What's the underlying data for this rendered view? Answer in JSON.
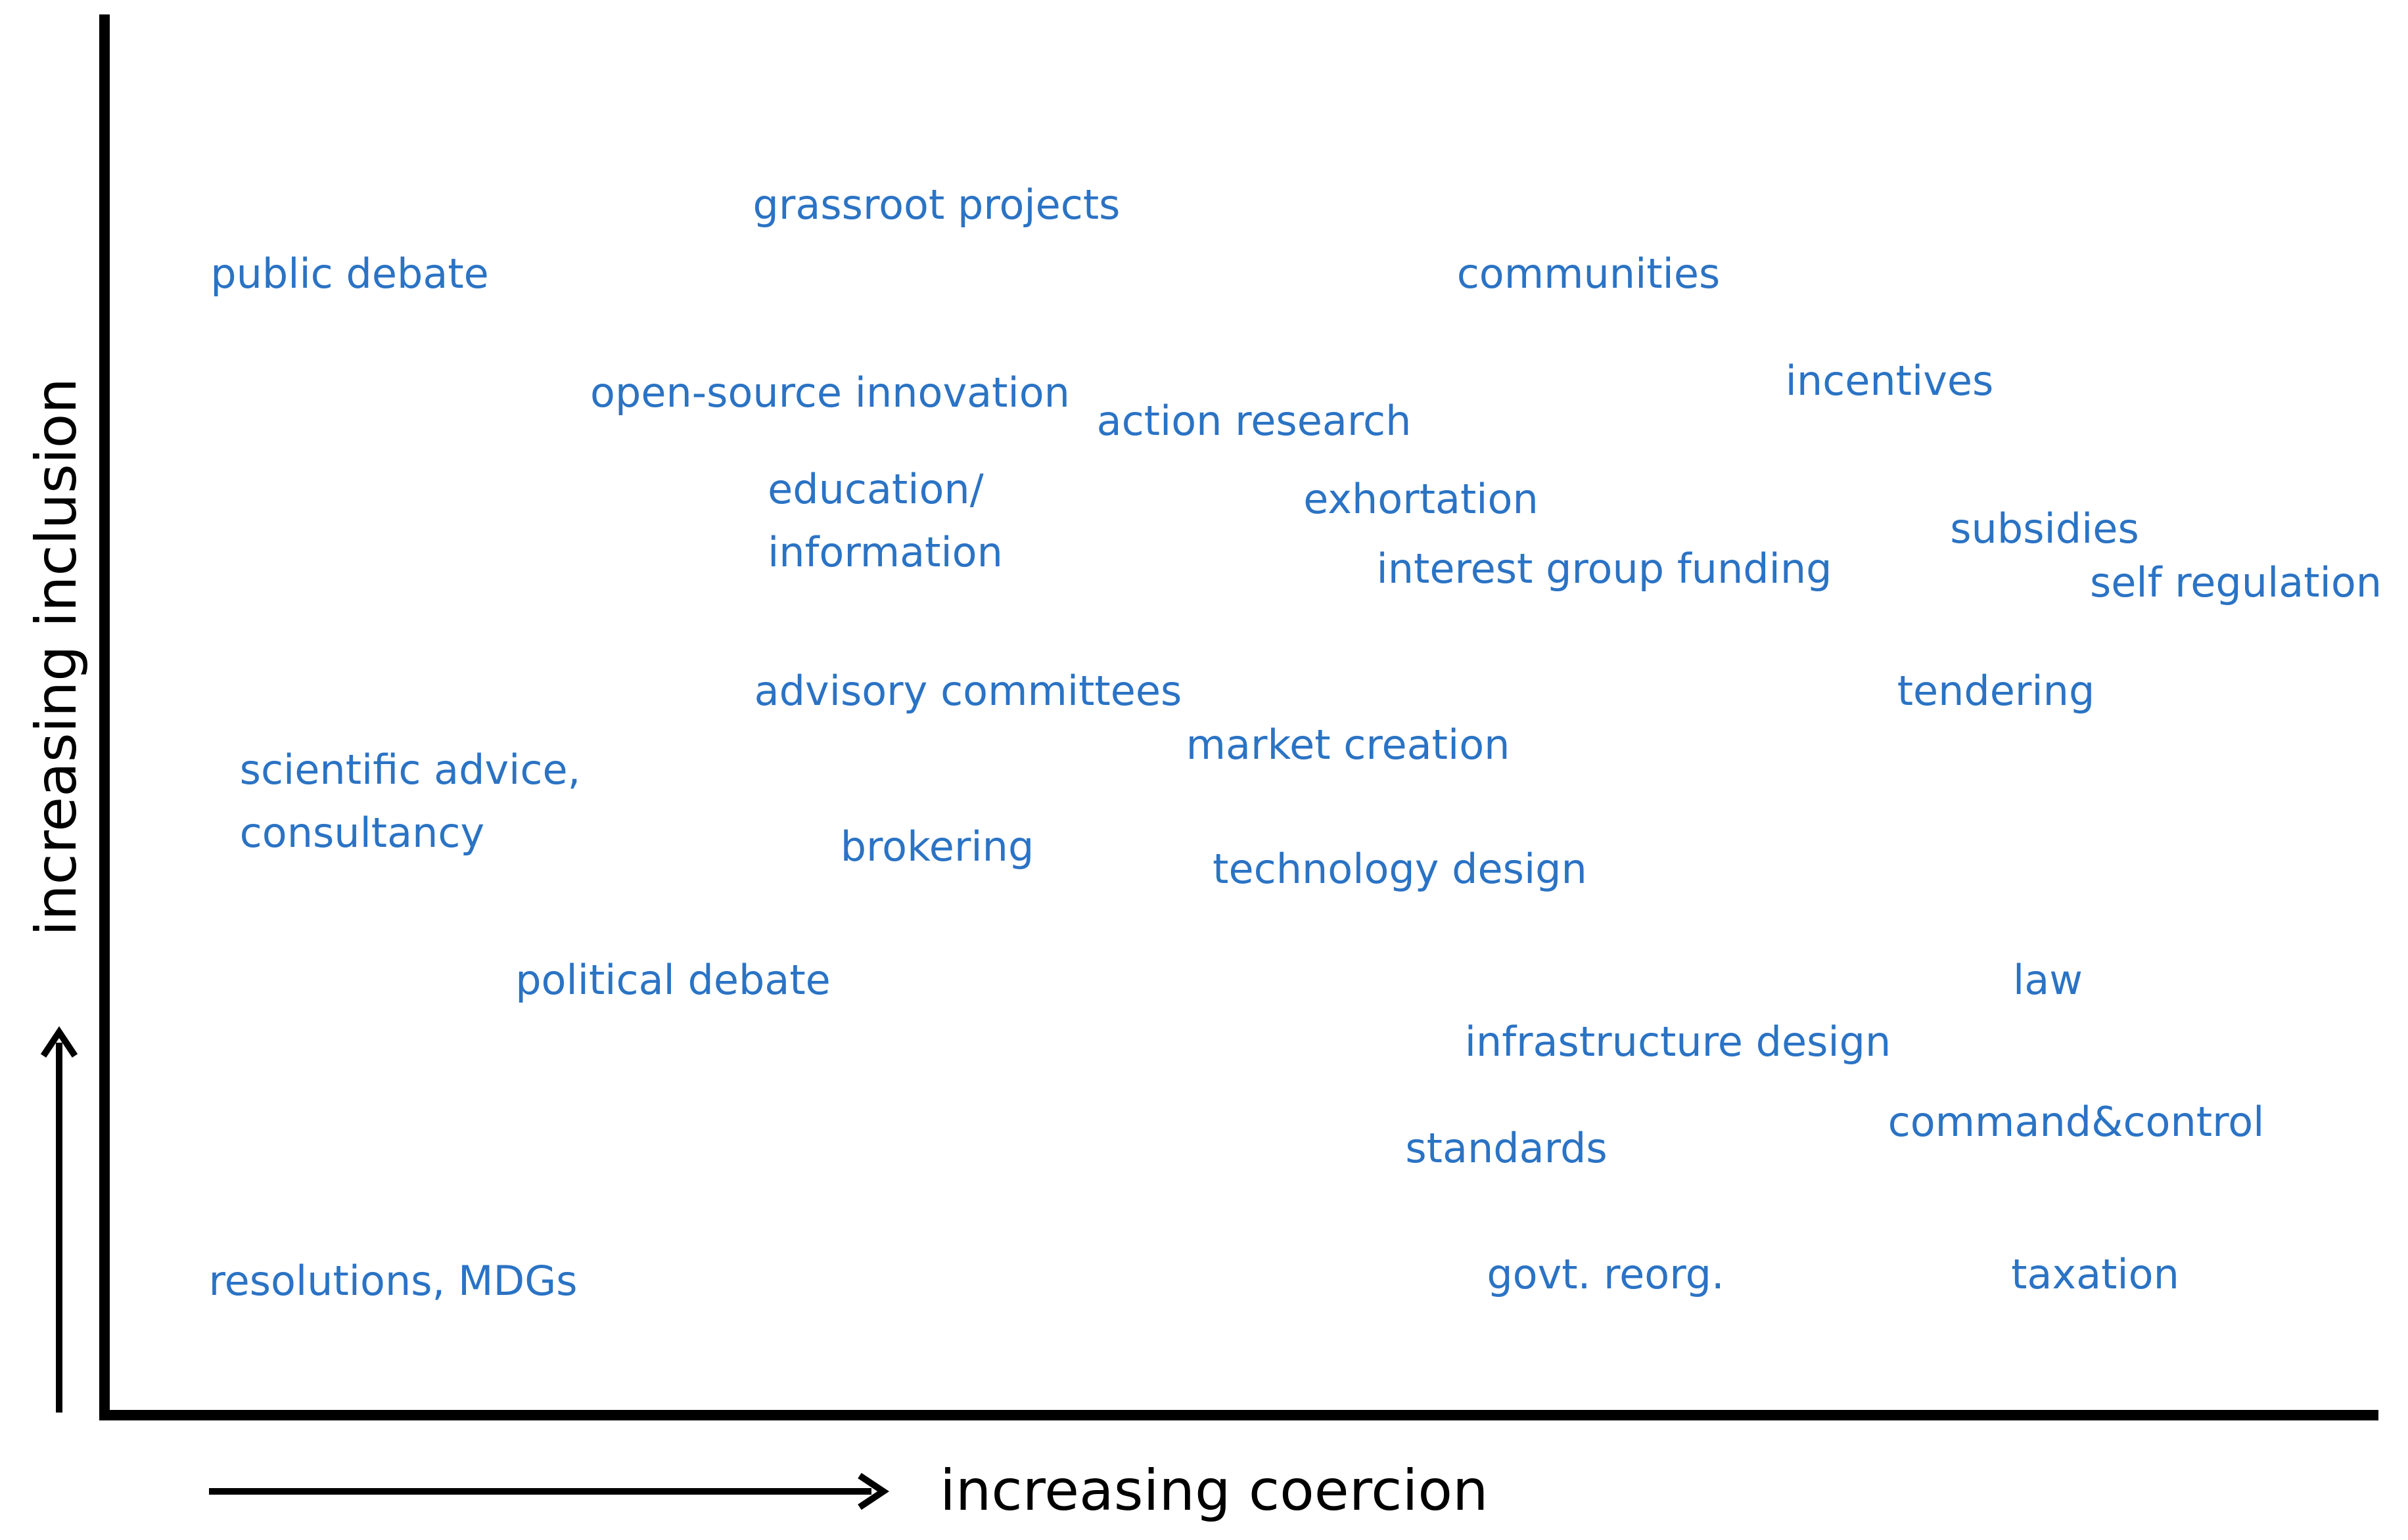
{
  "axes": {
    "x_label": "increasing coercion",
    "y_label": "increasing inclusion"
  },
  "colors": {
    "term_text": "#2b73c4",
    "axis": "#000000"
  },
  "terms": [
    {
      "id": "grassroot-projects",
      "lines": [
        "grassroot projects"
      ]
    },
    {
      "id": "public-debate",
      "lines": [
        "public debate"
      ]
    },
    {
      "id": "communities",
      "lines": [
        "communities"
      ]
    },
    {
      "id": "incentives",
      "lines": [
        "incentives"
      ]
    },
    {
      "id": "open-source-innovation",
      "lines": [
        "open-source innovation"
      ]
    },
    {
      "id": "action-research",
      "lines": [
        "action research"
      ]
    },
    {
      "id": "education-information",
      "lines": [
        "education/",
        "information"
      ]
    },
    {
      "id": "exhortation",
      "lines": [
        "exhortation"
      ]
    },
    {
      "id": "subsidies",
      "lines": [
        "subsidies"
      ]
    },
    {
      "id": "interest-group-funding",
      "lines": [
        "interest group funding"
      ]
    },
    {
      "id": "self-regulation",
      "lines": [
        "self regulation"
      ]
    },
    {
      "id": "advisory-committees",
      "lines": [
        "advisory committees"
      ]
    },
    {
      "id": "tendering",
      "lines": [
        "tendering"
      ]
    },
    {
      "id": "market-creation",
      "lines": [
        "market creation"
      ]
    },
    {
      "id": "scientific-advice",
      "lines": [
        "scientific advice,",
        "consultancy"
      ]
    },
    {
      "id": "brokering",
      "lines": [
        "brokering"
      ]
    },
    {
      "id": "technology-design",
      "lines": [
        "technology design"
      ]
    },
    {
      "id": "political-debate",
      "lines": [
        "political debate"
      ]
    },
    {
      "id": "law",
      "lines": [
        "law"
      ]
    },
    {
      "id": "infrastructure-design",
      "lines": [
        "infrastructure design"
      ]
    },
    {
      "id": "command-control",
      "lines": [
        "command&control"
      ]
    },
    {
      "id": "standards",
      "lines": [
        "standards"
      ]
    },
    {
      "id": "resolutions-mdgs",
      "lines": [
        "resolutions, MDGs"
      ]
    },
    {
      "id": "govt-reorg",
      "lines": [
        "govt. reorg."
      ]
    },
    {
      "id": "taxation",
      "lines": [
        "taxation"
      ]
    }
  ]
}
